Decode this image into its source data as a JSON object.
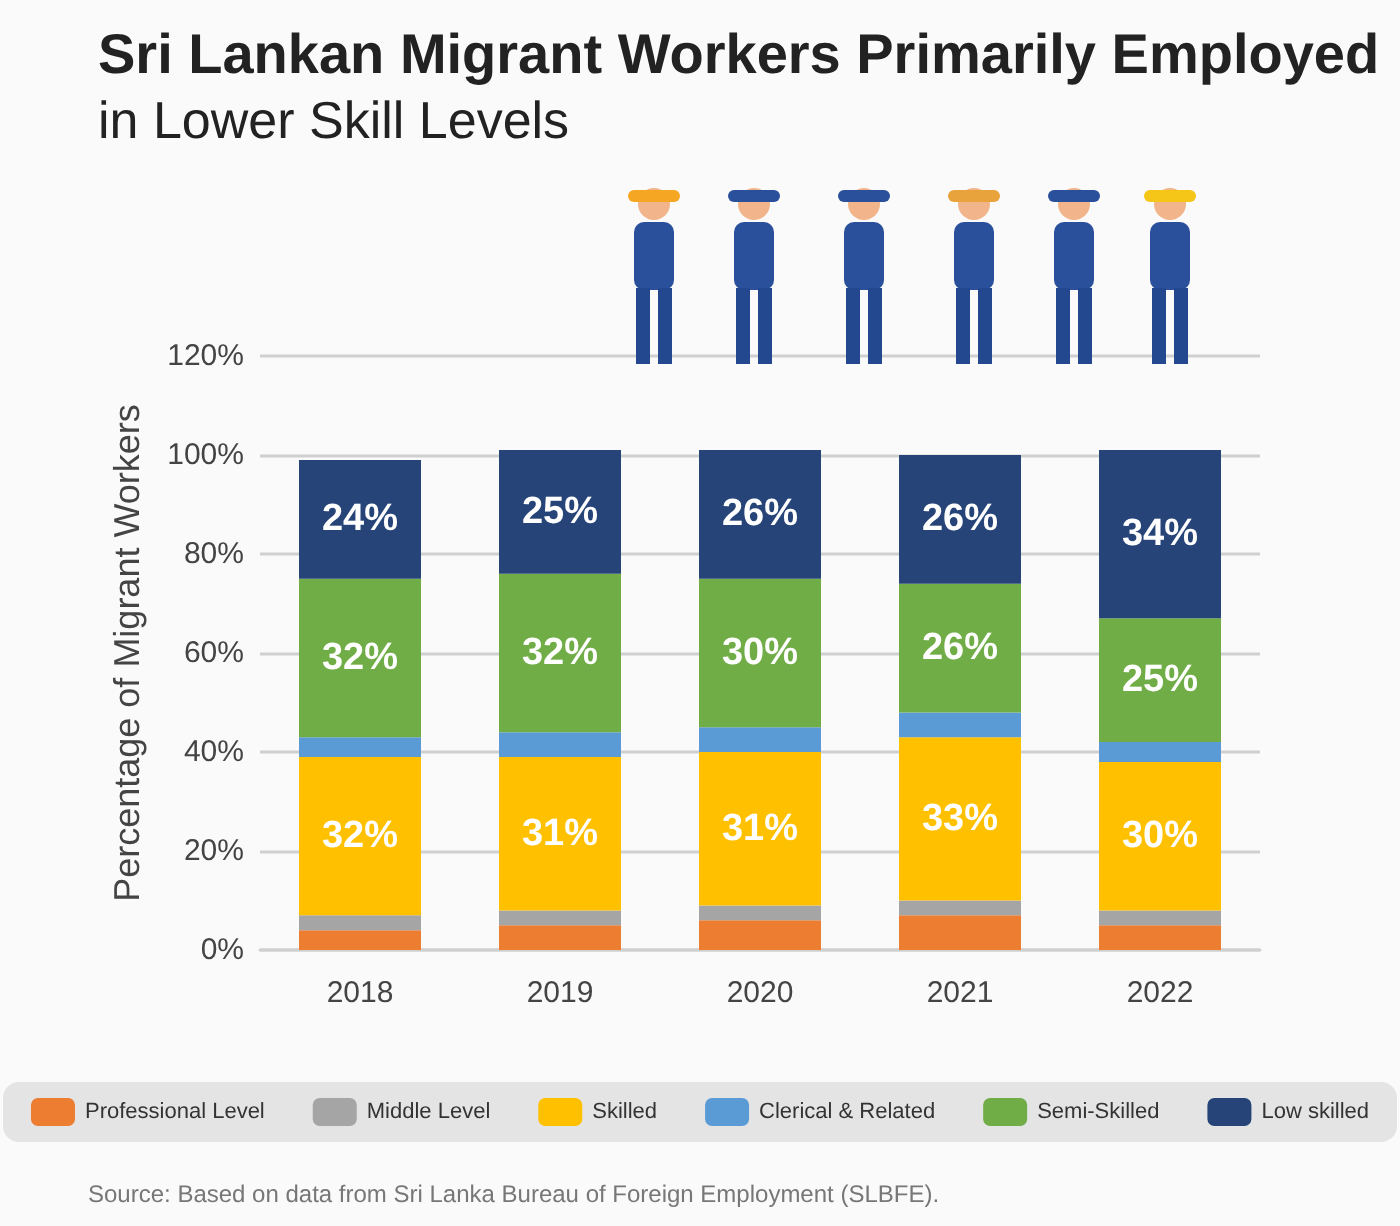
{
  "chart_data": {
    "type": "bar",
    "title": "Sri Lankan Migrant Workers Primarily Employed",
    "subtitle": "in Lower Skill Levels",
    "ylabel": "Percentage of Migrant Workers",
    "annotations": [
      "Source: Based on data from Sri Lanka Bureau of Foreign Employment (SLBFE)."
    ],
    "categories": [
      "2018",
      "2019",
      "2020",
      "2021",
      "2022"
    ],
    "stacked": true,
    "ylim": [
      0,
      120
    ],
    "yticks": [
      {
        "value": 0,
        "label": "0%"
      },
      {
        "value": 20,
        "label": "20%"
      },
      {
        "value": 40,
        "label": "40%"
      },
      {
        "value": 60,
        "label": "60%"
      },
      {
        "value": 80,
        "label": "80%"
      },
      {
        "value": 100,
        "label": "100%"
      },
      {
        "value": 120,
        "label": "120%"
      }
    ],
    "grid": "y",
    "legend": "bottom",
    "series": [
      {
        "name": "Professional Level",
        "color": "#ed7d31",
        "values": [
          4,
          5,
          6,
          7,
          5
        ]
      },
      {
        "name": "Middle Level",
        "color": "#a5a5a5",
        "values": [
          3,
          3,
          3,
          3,
          3
        ]
      },
      {
        "name": "Skilled",
        "color": "#ffc000",
        "values": [
          32,
          31,
          31,
          33,
          30
        ],
        "value_labels": [
          "32%",
          "31%",
          "31%",
          "33%",
          "30%"
        ]
      },
      {
        "name": "Clerical & Related",
        "color": "#5b9bd5",
        "values": [
          4,
          5,
          5,
          5,
          4
        ]
      },
      {
        "name": "Semi-Skilled",
        "color": "#70ad47",
        "values": [
          32,
          32,
          30,
          26,
          25
        ],
        "value_labels": [
          "32%",
          "32%",
          "30%",
          "26%",
          "25%"
        ]
      },
      {
        "name": "Low skilled",
        "color": "#264478",
        "values": [
          24,
          25,
          26,
          26,
          34
        ],
        "value_labels": [
          "24%",
          "25%",
          "26%",
          "26%",
          "34%"
        ]
      }
    ]
  }
}
